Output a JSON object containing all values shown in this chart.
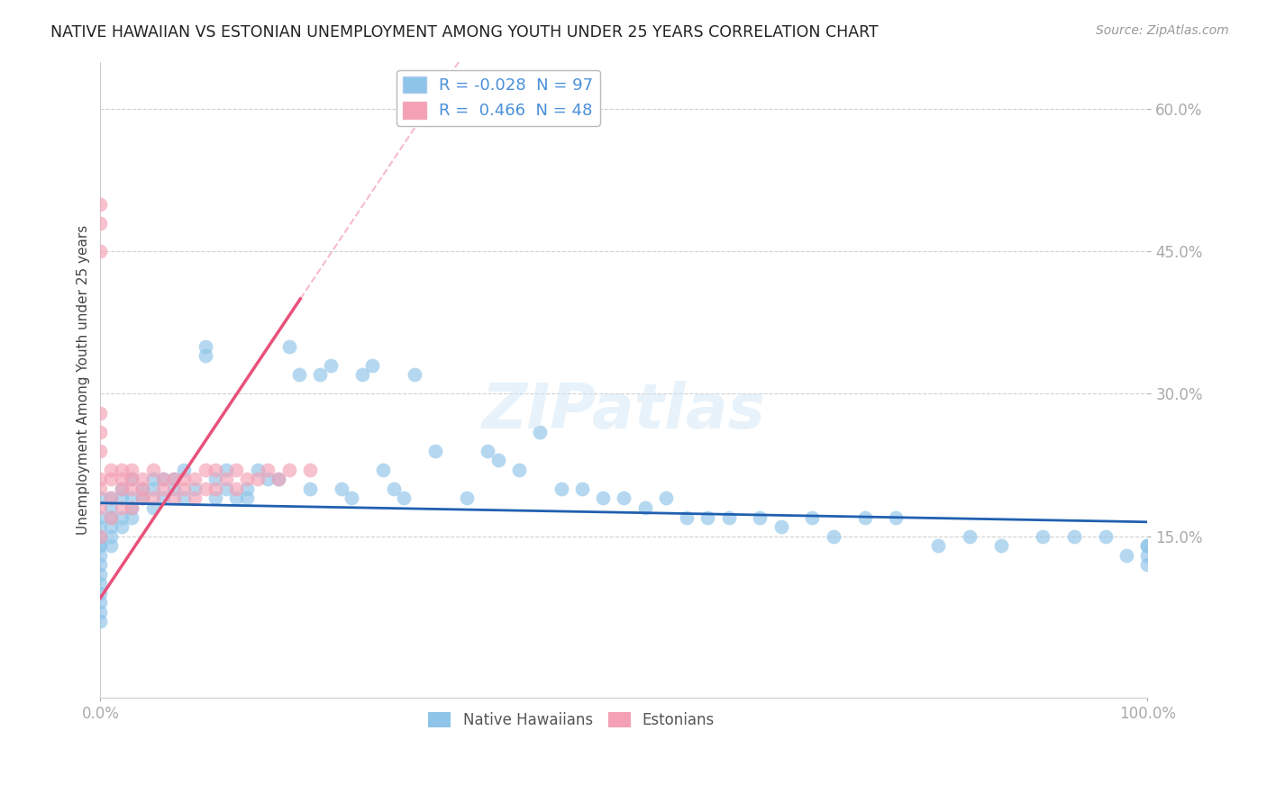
{
  "title": "NATIVE HAWAIIAN VS ESTONIAN UNEMPLOYMENT AMONG YOUTH UNDER 25 YEARS CORRELATION CHART",
  "source": "Source: ZipAtlas.com",
  "ylabel": "Unemployment Among Youth under 25 years",
  "xlabel": "",
  "xlim": [
    0,
    1.0
  ],
  "ylim": [
    -0.02,
    0.65
  ],
  "yticks": [
    0.15,
    0.3,
    0.45,
    0.6
  ],
  "ytick_labels": [
    "15.0%",
    "30.0%",
    "45.0%",
    "60.0%"
  ],
  "xticks": [
    0.0,
    1.0
  ],
  "xtick_labels": [
    "0.0%",
    "100.0%"
  ],
  "blue_color": "#8ec4e8",
  "pink_color": "#f4a0b5",
  "blue_line_color": "#2060b0",
  "pink_line_color": "#e8517a",
  "pink_line_dash_color": "#f0a0b8",
  "title_fontsize": 13,
  "source_fontsize": 10,
  "axis_color": "#4a90d9",
  "R_blue": -0.028,
  "N_blue": 97,
  "R_pink": 0.466,
  "N_pink": 48,
  "blue_trend_intercept": 0.185,
  "blue_trend_slope": -0.02,
  "pink_trend_intercept": 0.085,
  "pink_trend_slope": 1.65,
  "native_hawaiian_x": [
    0.0,
    0.0,
    0.0,
    0.0,
    0.0,
    0.0,
    0.0,
    0.0,
    0.0,
    0.0,
    0.0,
    0.0,
    0.0,
    0.0,
    0.01,
    0.01,
    0.01,
    0.01,
    0.01,
    0.01,
    0.02,
    0.02,
    0.02,
    0.02,
    0.03,
    0.03,
    0.03,
    0.03,
    0.04,
    0.04,
    0.05,
    0.05,
    0.05,
    0.06,
    0.06,
    0.07,
    0.07,
    0.08,
    0.08,
    0.09,
    0.1,
    0.1,
    0.11,
    0.11,
    0.12,
    0.12,
    0.13,
    0.14,
    0.14,
    0.15,
    0.16,
    0.17,
    0.18,
    0.19,
    0.2,
    0.21,
    0.22,
    0.23,
    0.24,
    0.25,
    0.26,
    0.27,
    0.28,
    0.29,
    0.3,
    0.32,
    0.35,
    0.37,
    0.38,
    0.4,
    0.42,
    0.44,
    0.46,
    0.48,
    0.5,
    0.52,
    0.54,
    0.56,
    0.58,
    0.6,
    0.63,
    0.65,
    0.68,
    0.7,
    0.73,
    0.76,
    0.8,
    0.83,
    0.86,
    0.9,
    0.93,
    0.96,
    0.98,
    1.0,
    1.0,
    1.0,
    1.0
  ],
  "native_hawaiian_y": [
    0.19,
    0.17,
    0.16,
    0.15,
    0.14,
    0.14,
    0.13,
    0.12,
    0.11,
    0.1,
    0.09,
    0.08,
    0.07,
    0.06,
    0.19,
    0.18,
    0.17,
    0.16,
    0.15,
    0.14,
    0.2,
    0.19,
    0.17,
    0.16,
    0.21,
    0.19,
    0.18,
    0.17,
    0.2,
    0.19,
    0.21,
    0.2,
    0.18,
    0.21,
    0.19,
    0.21,
    0.2,
    0.22,
    0.19,
    0.2,
    0.35,
    0.34,
    0.21,
    0.19,
    0.22,
    0.2,
    0.19,
    0.2,
    0.19,
    0.22,
    0.21,
    0.21,
    0.35,
    0.32,
    0.2,
    0.32,
    0.33,
    0.2,
    0.19,
    0.32,
    0.33,
    0.22,
    0.2,
    0.19,
    0.32,
    0.24,
    0.19,
    0.24,
    0.23,
    0.22,
    0.26,
    0.2,
    0.2,
    0.19,
    0.19,
    0.18,
    0.19,
    0.17,
    0.17,
    0.17,
    0.17,
    0.16,
    0.17,
    0.15,
    0.17,
    0.17,
    0.14,
    0.15,
    0.14,
    0.15,
    0.15,
    0.15,
    0.13,
    0.14,
    0.14,
    0.13,
    0.12
  ],
  "estonian_x": [
    0.0,
    0.0,
    0.0,
    0.0,
    0.0,
    0.0,
    0.0,
    0.0,
    0.0,
    0.0,
    0.01,
    0.01,
    0.01,
    0.01,
    0.02,
    0.02,
    0.02,
    0.02,
    0.03,
    0.03,
    0.03,
    0.03,
    0.04,
    0.04,
    0.04,
    0.05,
    0.05,
    0.06,
    0.06,
    0.07,
    0.07,
    0.08,
    0.08,
    0.09,
    0.09,
    0.1,
    0.1,
    0.11,
    0.11,
    0.12,
    0.13,
    0.13,
    0.14,
    0.15,
    0.16,
    0.17,
    0.18,
    0.2
  ],
  "estonian_y": [
    0.5,
    0.48,
    0.45,
    0.28,
    0.26,
    0.24,
    0.21,
    0.2,
    0.18,
    0.15,
    0.22,
    0.21,
    0.19,
    0.17,
    0.22,
    0.21,
    0.2,
    0.18,
    0.22,
    0.21,
    0.2,
    0.18,
    0.21,
    0.2,
    0.19,
    0.22,
    0.19,
    0.21,
    0.2,
    0.21,
    0.19,
    0.21,
    0.2,
    0.21,
    0.19,
    0.22,
    0.2,
    0.22,
    0.2,
    0.21,
    0.22,
    0.2,
    0.21,
    0.21,
    0.22,
    0.21,
    0.22,
    0.22
  ]
}
